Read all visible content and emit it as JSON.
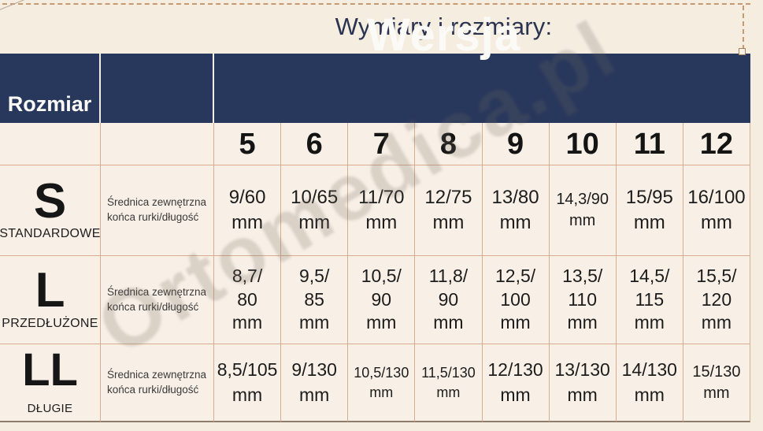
{
  "title": "Wymiary i rozmiary:",
  "watermark": "Ortomedica.pl",
  "table": {
    "size_header": "Rozmiar",
    "version_header": "Wersja",
    "version_numbers": [
      "5",
      "6",
      "7",
      "8",
      "9",
      "10",
      "11",
      "12"
    ],
    "rows": [
      {
        "size": "S",
        "size_name": "STANDARDOWE",
        "description": "Średnica zewnętrzna\nkońca rurki/długość",
        "values": [
          "9/60\nmm",
          "10/65\nmm",
          "11/70\nmm",
          "12/75\nmm",
          "13/80\nmm",
          "14,3/90\nmm",
          "15/95\nmm",
          "16/100\nmm"
        ]
      },
      {
        "size": "L",
        "size_name": "PRZEDŁUŻONE",
        "description": "Średnica zewnętrzna\nkońca rurki/długość",
        "values": [
          "8,7/\n80\nmm",
          "9,5/\n85\nmm",
          "10,5/\n90\nmm",
          "11,8/\n90\nmm",
          "12,5/\n100\nmm",
          "13,5/\n110\nmm",
          "14,5/\n115\nmm",
          "15,5/\n120\nmm"
        ]
      },
      {
        "size": "LL",
        "size_name": "DŁUGIE",
        "description": "Średnica zewnętrzna\nkońca rurki/długość",
        "values": [
          "8,5/105\nmm",
          "9/130\nmm",
          "10,5/130\nmm",
          "11,5/130\nmm",
          "12/130\nmm",
          "13/130\nmm",
          "14/130\nmm",
          "15/130\nmm"
        ]
      }
    ]
  },
  "chart_data": {
    "type": "table",
    "title": "Wymiary i rozmiary:",
    "column_group_header": "Wersja",
    "row_header": "Rozmiar",
    "columns": [
      "5",
      "6",
      "7",
      "8",
      "9",
      "10",
      "11",
      "12"
    ],
    "measure": "Średnica zewnętrzna końca rurki/długość",
    "rows": [
      {
        "size": "S",
        "name": "STANDARDOWE",
        "values_mm": [
          "9/60",
          "10/65",
          "11/70",
          "12/75",
          "13/80",
          "14,3/90",
          "15/95",
          "16/100"
        ]
      },
      {
        "size": "L",
        "name": "PRZEDŁUŻONE",
        "values_mm": [
          "8,7/80",
          "9,5/85",
          "10,5/90",
          "11,8/90",
          "12,5/100",
          "13,5/110",
          "14,5/115",
          "15,5/120"
        ]
      },
      {
        "size": "LL",
        "name": "DŁUGIE",
        "values_mm": [
          "8,5/105",
          "9/130",
          "10,5/130",
          "11,5/130",
          "12/130",
          "13/130",
          "14/130",
          "15/130"
        ]
      }
    ]
  },
  "colors": {
    "navy": "#28385c",
    "page_background": "#f6ede1",
    "cell_background": "#f8f0e6",
    "cell_border": "#d6ad90",
    "selection_dash": "#c8996f",
    "title_text": "#2a3350"
  }
}
